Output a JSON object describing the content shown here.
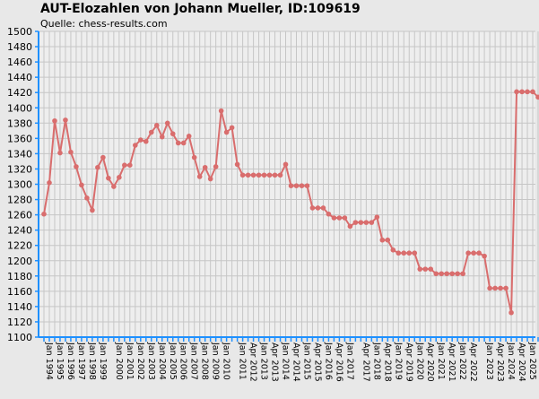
{
  "header": {
    "title": "AUT-Elozahlen von Johann Mueller, ID:109619",
    "subtitle": "Quelle: chess-results.com"
  },
  "colors": {
    "background": "#e8e8e8",
    "plot_background": "#eeeeee",
    "grid": "#c6c6c6",
    "axis": "#1e90ff",
    "line": "#d96d6d",
    "marker": "#d96d6d"
  },
  "chart_data": {
    "type": "line",
    "title": "AUT-Elozahlen von Johann Mueller, ID:109619",
    "subtitle": "Quelle: chess-results.com",
    "xlabel": "",
    "ylabel": "",
    "ylim": [
      1100,
      1500
    ],
    "ytick_step": 20,
    "grid": true,
    "x_tick_labels": [
      "Jan 1994",
      "Jan 1995",
      "Jan 1996",
      "Jan 1997",
      "Jan 1998",
      "Jan 1999",
      "Jan 2000",
      "Jan 2001",
      "Jan 2002",
      "Jan 2003",
      "Jan 2004",
      "Jan 2005",
      "Jan 2006",
      "Jan 2007",
      "Jan 2008",
      "Jan 2009",
      "Jan 2010",
      "Jan 2011",
      "Apr 2012",
      "Jan 2013",
      "Apr 2013",
      "Jan 2014",
      "Apr 2014",
      "Jan 2015",
      "Apr 2015",
      "Jan 2016",
      "Apr 2016",
      "Jan 2017",
      "Apr 2017",
      "Jan 2018",
      "Apr 2018",
      "Jan 2019",
      "Apr 2019",
      "Jan 2020",
      "Apr 2020",
      "Jan 2021",
      "Apr 2021",
      "Jan 2022",
      "Apr 2022",
      "Jan 2023",
      "Apr 2023",
      "Jan 2024",
      "Apr 2024",
      "Jan 2025",
      "Jul 2025"
    ],
    "series": [
      {
        "values": [
          1261,
          1302,
          1383,
          1341,
          1384,
          1342,
          1323,
          1299,
          1282,
          1266,
          1322,
          1335,
          1308,
          1297,
          1309,
          1325,
          1325,
          1351,
          1358,
          1356,
          1368,
          1377,
          1362,
          1380,
          1366,
          1354,
          1354,
          1363,
          1335,
          1310,
          1322,
          1307,
          1323,
          1396,
          1368,
          1374,
          1326,
          1312,
          1312,
          1312,
          1312,
          1312,
          1312,
          1312,
          1312,
          1326,
          1298,
          1298,
          1298,
          1298,
          1269,
          1269,
          1269,
          1261,
          1256,
          1256,
          1256,
          1245,
          1250,
          1250,
          1250,
          1250,
          1257,
          1227,
          1227,
          1214,
          1210,
          1210,
          1210,
          1210,
          1189,
          1189,
          1189,
          1183,
          1183,
          1183,
          1183,
          1183,
          1183,
          1210,
          1210,
          1210,
          1206,
          1164,
          1164,
          1164,
          1164,
          1132,
          1421,
          1421,
          1421,
          1421,
          1414
        ]
      }
    ]
  }
}
